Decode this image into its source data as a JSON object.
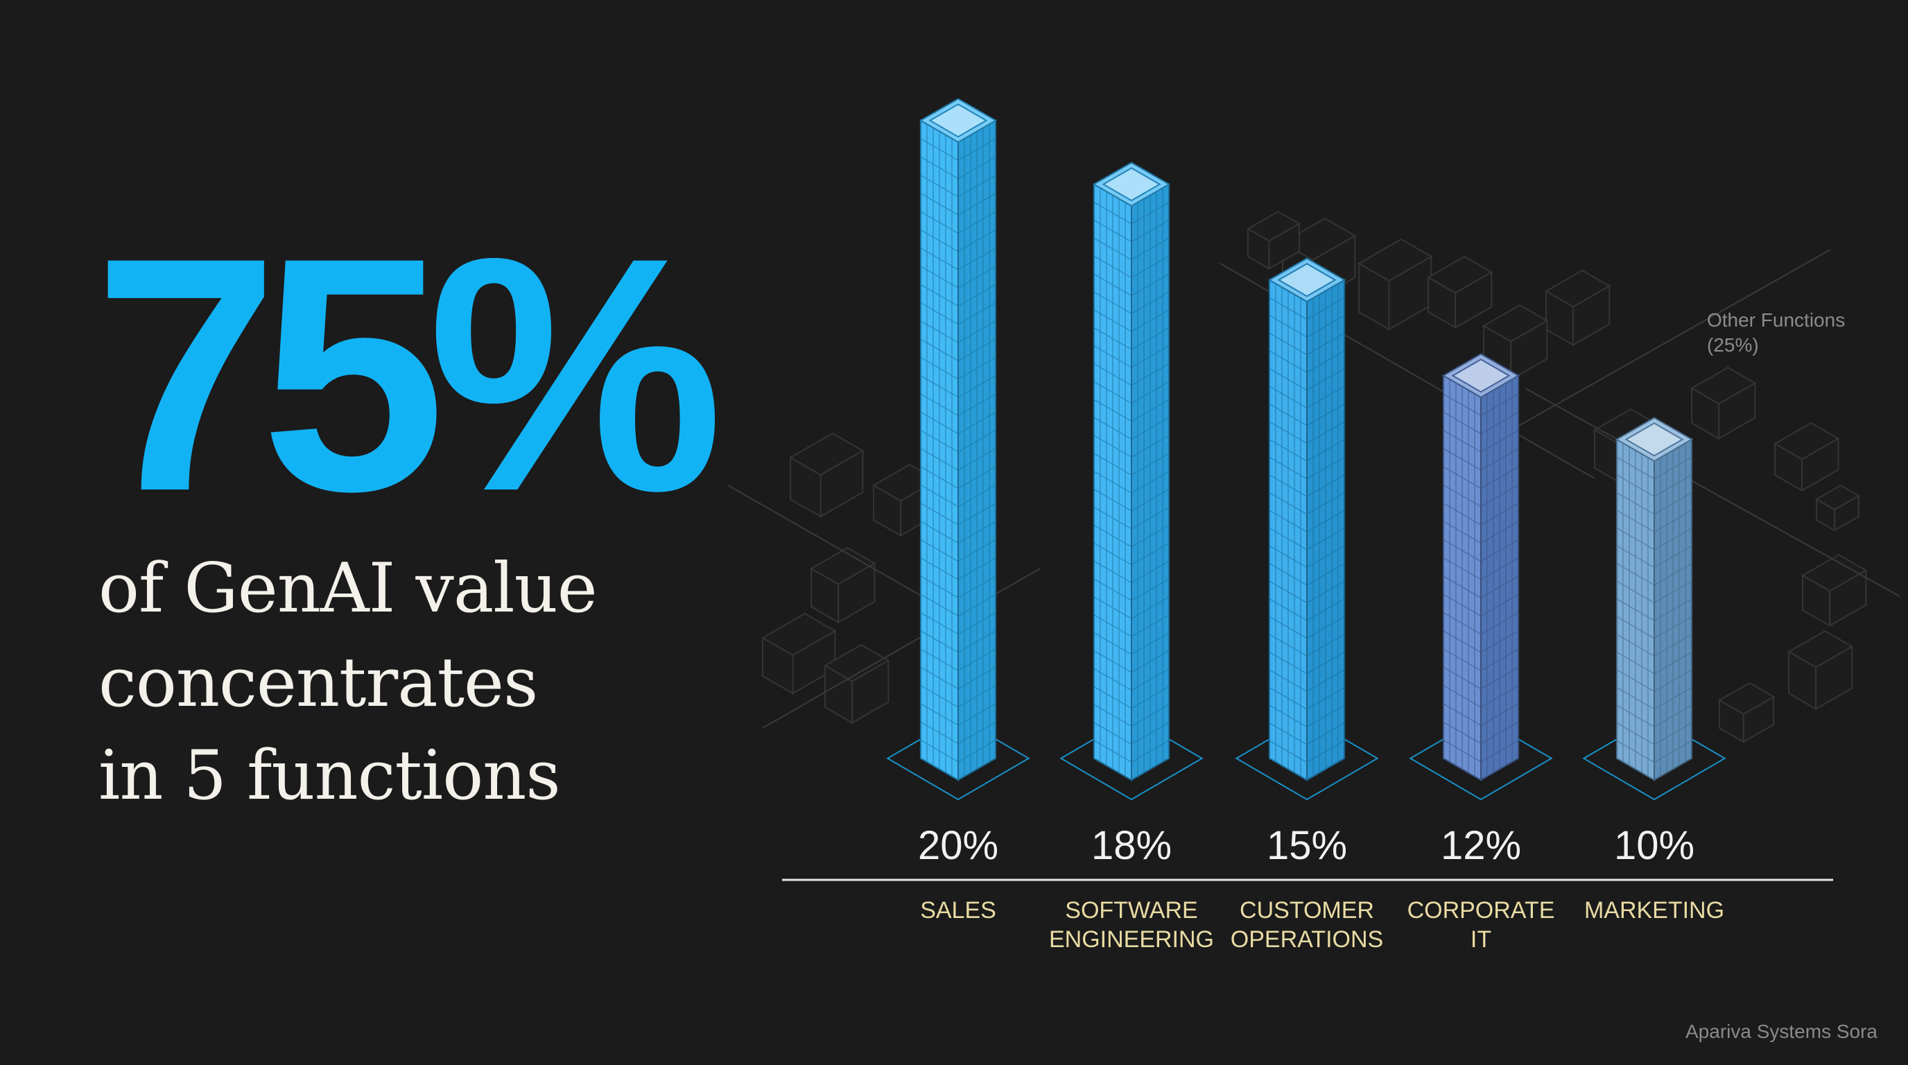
{
  "headline": {
    "stat": "75%",
    "line1": "of GenAI value",
    "line2": "concentrates",
    "line3": "in 5 functions"
  },
  "chart_data": {
    "type": "bar",
    "categories": [
      [
        "SALES"
      ],
      [
        "SOFTWARE",
        "ENGINEERING"
      ],
      [
        "CUSTOMER",
        "OPERATIONS"
      ],
      [
        "CORPORATE",
        "IT"
      ],
      [
        "MARKETING"
      ]
    ],
    "values": [
      20,
      18,
      15,
      12,
      10
    ],
    "value_labels": [
      "20%",
      "18%",
      "15%",
      "12%",
      "10%"
    ],
    "ylim": [
      0,
      20
    ],
    "other": {
      "label": "Other Functions",
      "value_label": "(25%)",
      "value": 25
    },
    "colors": {
      "bars": [
        "#2db2f4",
        "#2eaff3",
        "#2aa7ec",
        "#5a83cb",
        "#6aa0cf"
      ],
      "accent": "#12b3f5",
      "outline": "#1aaef2",
      "label": "#e9dca4",
      "value": "#f2f2f2"
    },
    "grid": false,
    "legend": "none"
  },
  "footer": {
    "credit": "Apariva Systems Sora"
  }
}
